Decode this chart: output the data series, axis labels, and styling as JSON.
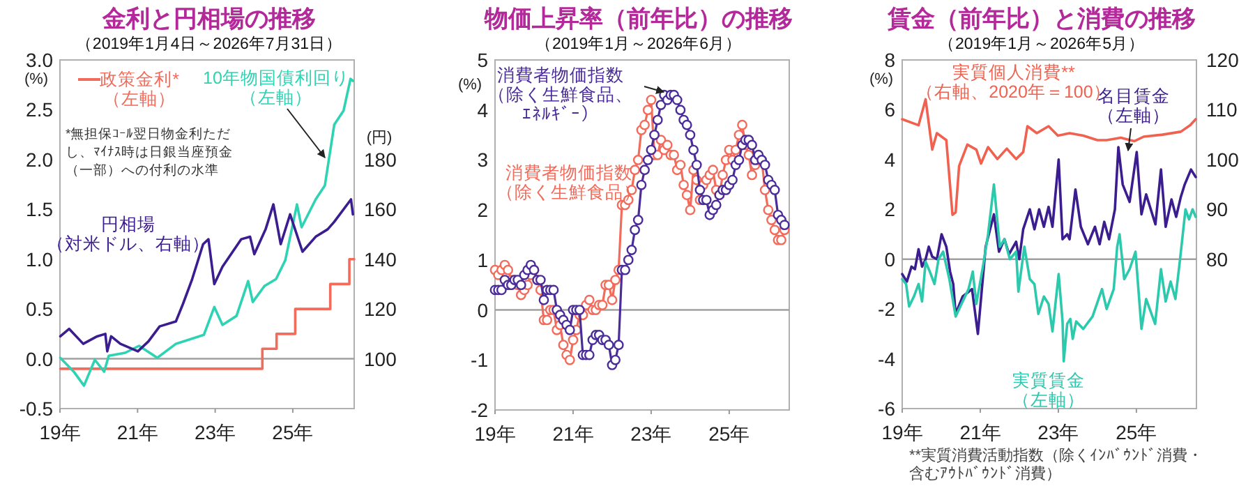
{
  "chart_data": [
    {
      "type": "line",
      "title": "金利と円相場の推移",
      "subtitle": "（2019年1月4日～2026年7月31日）",
      "ylabel": "(%)",
      "y2label": "(円)",
      "xlim": [
        "2019-01-01",
        "2026-07-31"
      ],
      "xticks": [
        {
          "value": "2019",
          "label": "19年"
        },
        {
          "value": "2021",
          "label": "21年"
        },
        {
          "value": "2023",
          "label": "23年"
        },
        {
          "value": "2025",
          "label": "25年"
        }
      ],
      "ylim": [
        -0.5,
        3.0
      ],
      "yticks": [
        {
          "value": -0.5,
          "label": "-0.5"
        },
        {
          "value": 0,
          "label": "0.0"
        },
        {
          "value": 0.5,
          "label": "0.5"
        },
        {
          "value": 1,
          "label": "1.0"
        },
        {
          "value": 1.5,
          "label": "1.5"
        },
        {
          "value": 2,
          "label": "2.0"
        },
        {
          "value": 2.5,
          "label": "2.5"
        },
        {
          "value": 3,
          "label": "3.0"
        }
      ],
      "y2lim": [
        80,
        220
      ],
      "y2ticks": [
        100,
        120,
        140,
        160,
        180
      ],
      "ref_lines": [
        {
          "axis": "y",
          "value": 0,
          "color": "#a0a0a0"
        }
      ],
      "series": [
        {
          "name": "政策金利*（左軸）",
          "type": "step",
          "color": "#f26b5b",
          "x": [
            "2019-01-04",
            "2024-03-19",
            "2024-07-31",
            "2025-01-24",
            "2025-12-19",
            "2026-06-16",
            "2026-07-31"
          ],
          "values": [
            -0.1,
            0.1,
            0.25,
            0.5,
            0.75,
            1.0,
            1.0
          ]
        },
        {
          "name": "10年物国債利回り（左軸）",
          "color": "#2ed3b3",
          "x": [
            "2019-01-04",
            "2019-05-10",
            "2019-08-14",
            "2019-11-25",
            "2020-02-21",
            "2020-04-04",
            "2020-09-06",
            "2021-01-15",
            "2021-07-04",
            "2021-12-27",
            "2022-09-16",
            "2022-12-23",
            "2023-03-09",
            "2023-07-19",
            "2023-11-07",
            "2023-12-20",
            "2024-04-08",
            "2024-07-26",
            "2024-10-22",
            "2025-02-10",
            "2025-03-23",
            "2025-08-03",
            "2025-10-29",
            "2026-01-26",
            "2026-04-22",
            "2026-06-27",
            "2026-07-19"
          ],
          "values": [
            0.01,
            -0.13,
            -0.27,
            -0.01,
            -0.13,
            0.03,
            0.06,
            0.13,
            0.01,
            0.15,
            0.24,
            0.52,
            0.34,
            0.43,
            0.78,
            0.57,
            0.73,
            0.8,
            0.99,
            1.55,
            1.32,
            1.6,
            1.74,
            2.35,
            2.49,
            2.81,
            2.79
          ]
        },
        {
          "name": "円相場（対米ドル、右軸）",
          "axis": "y2",
          "color": "#3b1d8f",
          "x": [
            "2019-01-04",
            "2019-03-27",
            "2019-08-07",
            "2019-12-16",
            "2020-03-02",
            "2020-03-20",
            "2020-04-26",
            "2020-07-22",
            "2021-01-04",
            "2021-04-12",
            "2021-07-26",
            "2021-12-27",
            "2022-03-02",
            "2022-05-28",
            "2022-09-09",
            "2022-10-29",
            "2022-12-23",
            "2023-03-09",
            "2023-09-02",
            "2023-11-25",
            "2024-01-04",
            "2024-04-19",
            "2024-07-01",
            "2024-09-09",
            "2024-12-06",
            "2025-04-01",
            "2025-08-03",
            "2025-11-25",
            "2026-01-26",
            "2026-07-01",
            "2026-07-19"
          ],
          "values": [
            109,
            112,
            106,
            109,
            110,
            103,
            109,
            106,
            103,
            107,
            113,
            115,
            122,
            132,
            146,
            148,
            130,
            137,
            148,
            149,
            142,
            152,
            162,
            146,
            158,
            143,
            149,
            152,
            155,
            164,
            158
          ]
        }
      ],
      "annotations": [
        "*無担保ｺｰﾙ翌日物金利ただし、ﾏｲﾅｽ時は日銀当座預金（一部）への付利の水準"
      ]
    },
    {
      "type": "line",
      "title": "物価上昇率（前年比）の推移",
      "subtitle": "（2019年1月～2026年6月）",
      "ylabel": "(%)",
      "marker": "circle",
      "xlim": [
        "2019-01-01",
        "2026-07-15"
      ],
      "xticks": [
        {
          "value": "2019",
          "label": "19年"
        },
        {
          "value": "2021",
          "label": "21年"
        },
        {
          "value": "2023",
          "label": "23年"
        },
        {
          "value": "2025",
          "label": "25年"
        }
      ],
      "ylim": [
        -2,
        5
      ],
      "yticks": [
        -2,
        -1,
        0,
        1,
        2,
        3,
        4,
        5
      ],
      "ref_lines": [
        {
          "axis": "y",
          "value": 0,
          "color": "#a0a0a0"
        }
      ],
      "x": [
        "2019-01",
        "2019-02",
        "2019-03",
        "2019-04",
        "2019-05",
        "2019-06",
        "2019-07",
        "2019-08",
        "2019-09",
        "2019-10",
        "2019-11",
        "2019-12",
        "2020-01",
        "2020-02",
        "2020-03",
        "2020-04",
        "2020-05",
        "2020-06",
        "2020-07",
        "2020-08",
        "2020-09",
        "2020-10",
        "2020-11",
        "2020-12",
        "2021-01",
        "2021-02",
        "2021-03",
        "2021-04",
        "2021-05",
        "2021-06",
        "2021-07",
        "2021-08",
        "2021-09",
        "2021-10",
        "2021-11",
        "2021-12",
        "2022-01",
        "2022-02",
        "2022-03",
        "2022-04",
        "2022-05",
        "2022-06",
        "2022-07",
        "2022-08",
        "2022-09",
        "2022-10",
        "2022-11",
        "2022-12",
        "2023-01",
        "2023-02",
        "2023-03",
        "2023-04",
        "2023-05",
        "2023-06",
        "2023-07",
        "2023-08",
        "2023-09",
        "2023-10",
        "2023-11",
        "2023-12",
        "2024-01",
        "2024-02",
        "2024-03",
        "2024-04",
        "2024-05",
        "2024-06",
        "2024-07",
        "2024-08",
        "2024-09",
        "2024-10",
        "2024-11",
        "2024-12",
        "2025-01",
        "2025-02",
        "2025-03",
        "2025-04",
        "2025-05",
        "2025-06",
        "2025-07",
        "2025-08",
        "2025-09",
        "2025-10",
        "2025-11",
        "2025-12",
        "2026-01",
        "2026-02",
        "2026-03",
        "2026-04",
        "2026-05",
        "2026-06"
      ],
      "series": [
        {
          "name": "消費者物価指数（除く生鮮食品）",
          "color": "#f26b5b",
          "values": [
            0.8,
            0.7,
            0.8,
            0.9,
            0.8,
            0.6,
            0.6,
            0.5,
            0.3,
            0.4,
            0.5,
            0.7,
            0.8,
            0.6,
            0.4,
            -0.2,
            -0.2,
            0.0,
            0.0,
            -0.4,
            -0.3,
            -0.7,
            -0.9,
            -1.0,
            -0.6,
            -0.4,
            -0.1,
            -0.1,
            0.1,
            0.2,
            0.0,
            0.0,
            0.1,
            0.1,
            0.5,
            0.5,
            0.2,
            0.6,
            0.8,
            2.1,
            2.1,
            2.2,
            2.4,
            2.8,
            3.0,
            3.6,
            3.7,
            4.0,
            4.2,
            3.1,
            3.1,
            3.4,
            3.2,
            3.3,
            3.1,
            3.1,
            2.8,
            2.9,
            2.5,
            2.3,
            2.0,
            2.8,
            2.6,
            2.2,
            2.5,
            2.6,
            2.7,
            2.8,
            2.4,
            2.3,
            2.7,
            3.0,
            3.2,
            3.0,
            3.2,
            3.5,
            3.7,
            3.3,
            3.1,
            2.7,
            2.9,
            3.0,
            3.0,
            2.4,
            2.0,
            1.8,
            1.6,
            1.4,
            1.4,
            1.6
          ]
        },
        {
          "name": "消費者物価指数（除く生鮮食品、ｴﾈﾙｷﾞｰ）",
          "color": "#4b2d9a",
          "values": [
            0.4,
            0.4,
            0.4,
            0.6,
            0.5,
            0.5,
            0.6,
            0.6,
            0.5,
            0.7,
            0.8,
            0.9,
            0.8,
            0.6,
            0.6,
            0.2,
            0.4,
            0.4,
            0.4,
            0.0,
            -0.1,
            -0.2,
            -0.3,
            -0.4,
            0.0,
            0.0,
            0.0,
            -0.9,
            -0.9,
            -0.9,
            -0.6,
            -0.5,
            -0.5,
            -0.6,
            -0.6,
            -0.7,
            -1.1,
            -1.0,
            -0.7,
            0.8,
            0.8,
            1.0,
            1.2,
            1.6,
            1.8,
            2.5,
            2.8,
            3.0,
            3.2,
            3.5,
            3.8,
            4.1,
            4.3,
            4.2,
            4.3,
            4.3,
            4.2,
            4.0,
            3.8,
            3.7,
            3.5,
            3.2,
            2.9,
            2.4,
            2.2,
            2.2,
            1.9,
            2.0,
            2.1,
            2.3,
            2.4,
            2.4,
            2.5,
            2.6,
            2.9,
            3.0,
            3.3,
            3.4,
            3.4,
            3.3,
            3.0,
            3.1,
            3.0,
            2.9,
            2.6,
            2.5,
            2.4,
            1.9,
            1.8,
            1.7
          ]
        }
      ]
    },
    {
      "type": "line",
      "title": "賃金（前年比）と消費の推移",
      "subtitle": "（2019年1月～2026年5月）",
      "ylabel": "(%)",
      "xlim": [
        "2019-01-01",
        "2026-07-15"
      ],
      "xticks": [
        {
          "value": "2019",
          "label": "19年"
        },
        {
          "value": "2021",
          "label": "21年"
        },
        {
          "value": "2023",
          "label": "23年"
        },
        {
          "value": "2025",
          "label": "25年"
        }
      ],
      "ylim": [
        -6,
        8
      ],
      "yticks": [
        -6,
        -4,
        -2,
        0,
        2,
        4,
        6,
        8
      ],
      "y2lim": [
        50,
        120
      ],
      "y2ticks": [
        80,
        90,
        100,
        110,
        120
      ],
      "ref_lines": [
        {
          "axis": "y",
          "value": 0,
          "color": "#a0a0a0"
        }
      ],
      "series": [
        {
          "name": "実質個人消費**（右軸、2020年＝100）",
          "axis": "y2",
          "color": "#f0614f",
          "x": [
            "2019-01-01",
            "2019-06-02",
            "2019-08-07",
            "2019-10-08",
            "2019-11-21",
            "2020-02-18",
            "2020-04-15",
            "2020-05-14",
            "2020-06-16",
            "2020-09-02",
            "2020-11-25",
            "2021-01-08",
            "2021-03-13",
            "2021-06-09",
            "2021-09-06",
            "2021-12-02",
            "2022-02-07",
            "2022-03-16",
            "2022-06-13",
            "2022-10-01",
            "2022-12-27",
            "2023-04-15",
            "2023-08-21",
            "2024-01-01",
            "2024-03-27",
            "2024-08-07",
            "2024-12-13",
            "2025-03-09",
            "2025-09-02",
            "2026-02-21",
            "2026-05-18",
            "2026-07-08"
          ],
          "values": [
            108.1,
            106.9,
            112.1,
            102.0,
            105.3,
            103.9,
            88.9,
            89.4,
            98.7,
            103.0,
            102.0,
            99.2,
            102.5,
            100.1,
            102.2,
            100.1,
            101.5,
            106.7,
            105.3,
            106.7,
            104.8,
            105.3,
            104.8,
            103.9,
            103.9,
            104.4,
            103.7,
            104.6,
            105.0,
            105.6,
            106.9,
            108.1
          ]
        },
        {
          "name": "名目賃金（左軸）",
          "color": "#3b1d8f",
          "x": [
            "2019-01-01",
            "2019-02-14",
            "2019-03-27",
            "2019-04-29",
            "2019-06-02",
            "2019-07-04",
            "2019-08-07",
            "2019-09-06",
            "2019-10-08",
            "2019-11-21",
            "2020-01-04",
            "2020-02-18",
            "2020-03-23",
            "2020-04-22",
            "2020-05-14",
            "2020-07-19",
            "2020-10-15",
            "2020-12-09",
            "2021-02-21",
            "2021-05-07",
            "2021-06-24",
            "2021-08-14",
            "2021-09-27",
            "2021-12-02",
            "2022-01-01",
            "2022-02-07",
            "2022-04-08",
            "2022-05-21",
            "2022-07-04",
            "2022-08-18",
            "2022-10-01",
            "2022-11-07",
            "2023-01-04",
            "2023-02-10",
            "2023-03-23",
            "2023-04-15",
            "2023-06-09",
            "2023-07-29",
            "2023-10-04",
            "2023-12-09",
            "2024-01-22",
            "2024-03-05",
            "2024-04-19",
            "2024-06-13",
            "2024-07-15",
            "2024-08-25",
            "2024-10-29",
            "2025-01-04",
            "2025-02-18",
            "2025-04-01",
            "2025-06-27",
            "2025-08-18",
            "2025-10-01",
            "2025-11-25",
            "2026-01-08",
            "2026-02-21",
            "2026-03-27",
            "2026-05-25",
            "2026-07-08"
          ],
          "values": [
            -0.6,
            -0.9,
            -0.3,
            -0.4,
            0.4,
            -0.3,
            0.0,
            0.5,
            0.1,
            0.0,
            1.0,
            0.5,
            -0.5,
            -1.0,
            -2.2,
            -1.5,
            -1.2,
            -3.0,
            0.5,
            1.8,
            0.3,
            0.8,
            0.2,
            0.7,
            0.0,
            1.2,
            2.0,
            1.2,
            2.0,
            1.3,
            2.1,
            1.3,
            4.0,
            0.8,
            1.0,
            0.8,
            2.8,
            1.3,
            0.6,
            1.3,
            0.6,
            1.5,
            0.8,
            2.0,
            4.5,
            3.0,
            2.3,
            4.3,
            1.8,
            2.6,
            1.4,
            3.6,
            1.3,
            2.4,
            1.7,
            2.5,
            3.0,
            3.6,
            3.3
          ]
        },
        {
          "name": "実質賃金（左軸）",
          "color": "#2cc9ad",
          "x": [
            "2019-01-01",
            "2019-02-07",
            "2019-03-05",
            "2019-04-19",
            "2019-06-02",
            "2019-07-04",
            "2019-08-07",
            "2019-09-16",
            "2019-10-29",
            "2019-12-06",
            "2020-01-19",
            "2020-03-16",
            "2020-05-14",
            "2020-07-08",
            "2020-09-13",
            "2020-10-22",
            "2020-11-25",
            "2021-01-30",
            "2021-03-13",
            "2021-05-07",
            "2021-07-01",
            "2021-08-14",
            "2021-10-04",
            "2021-12-02",
            "2021-12-23",
            "2022-02-18",
            "2022-04-08",
            "2022-05-21",
            "2022-06-27",
            "2022-08-18",
            "2022-10-01",
            "2022-11-07",
            "2023-01-04",
            "2023-02-10",
            "2023-02-21",
            "2023-03-23",
            "2023-04-22",
            "2023-05-14",
            "2023-06-16",
            "2023-08-21",
            "2023-11-17",
            "2024-02-14",
            "2024-03-27",
            "2024-06-02",
            "2024-07-04",
            "2024-07-26",
            "2024-09-09",
            "2024-10-29",
            "2024-12-23",
            "2025-02-18",
            "2025-04-01",
            "2025-06-24",
            "2025-08-18",
            "2025-10-01",
            "2025-11-17",
            "2026-01-01",
            "2026-02-14",
            "2026-04-04",
            "2026-05-07",
            "2026-06-09",
            "2026-07-08"
          ],
          "values": [
            -0.8,
            -1.0,
            -1.9,
            -1.5,
            -1.0,
            -1.7,
            -0.1,
            -0.5,
            -1.0,
            0.0,
            0.3,
            -0.8,
            -2.3,
            -1.8,
            -1.2,
            -0.5,
            -1.8,
            -0.2,
            1.0,
            3.0,
            0.5,
            0.8,
            0.0,
            0.3,
            -1.3,
            0.5,
            -0.8,
            -1.0,
            -2.2,
            -1.5,
            -1.8,
            -2.9,
            -0.6,
            -2.5,
            -4.1,
            -2.6,
            -2.4,
            -3.2,
            -2.5,
            -2.8,
            -2.3,
            -1.2,
            -2.0,
            -1.2,
            0.5,
            1.0,
            -0.8,
            -0.4,
            0.3,
            -2.8,
            -1.6,
            -2.6,
            -0.4,
            -1.7,
            -0.9,
            -1.6,
            0.0,
            2.0,
            1.6,
            2.0,
            1.7
          ]
        }
      ],
      "annotations": [
        "**実質消費活動指数（除くｲﾝﾊﾞｳﾝﾄﾞ消費・含むｱｳﾄﾊﾞｳﾝﾄﾞ消費）"
      ]
    }
  ]
}
